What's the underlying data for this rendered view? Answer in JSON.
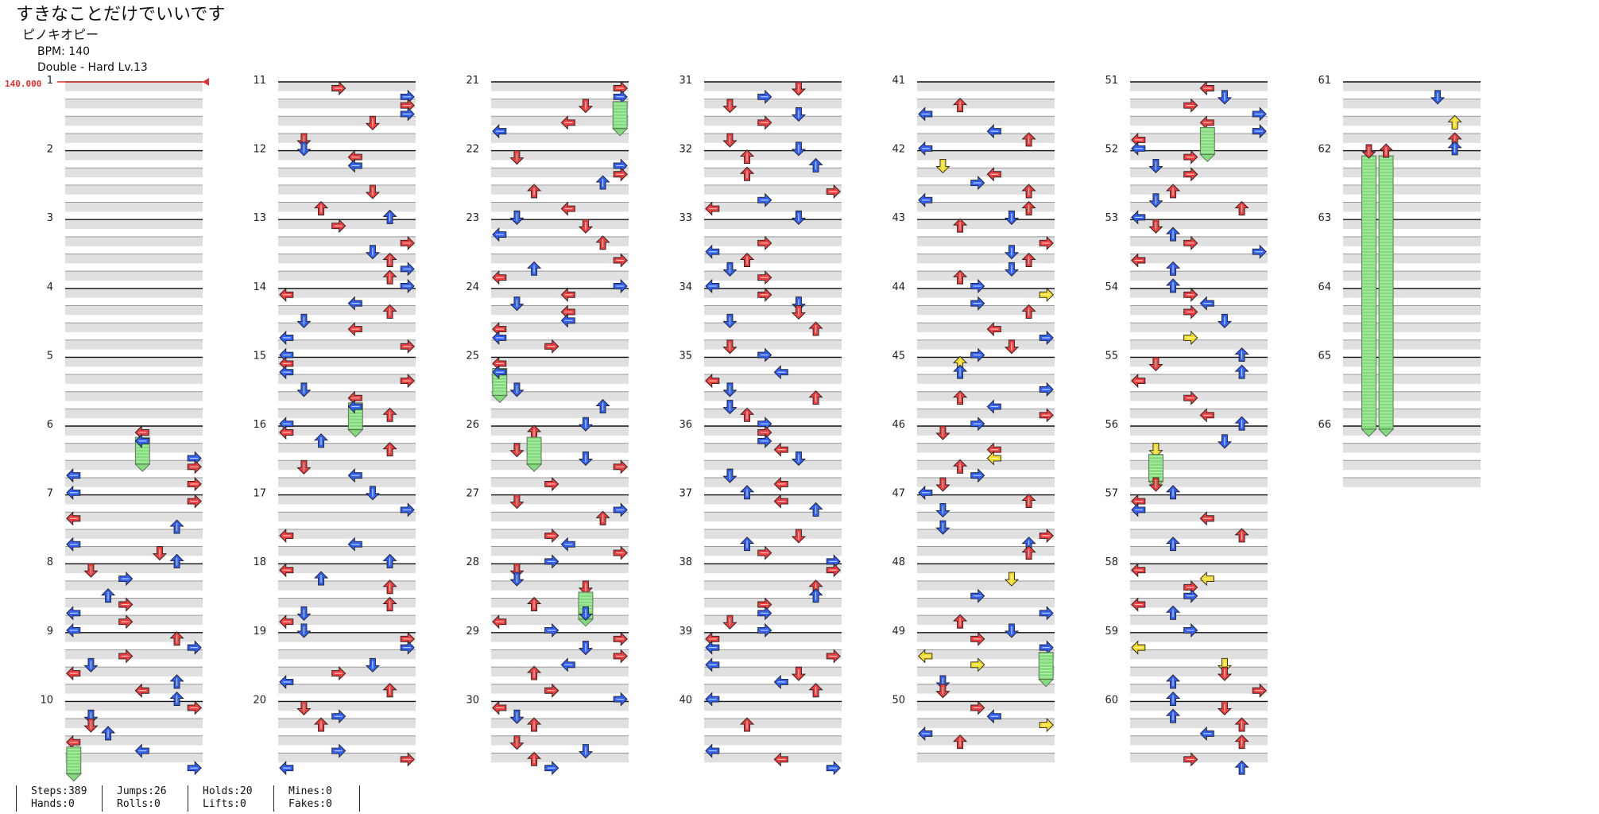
{
  "song": {
    "title": "すきなことだけでいいです",
    "artist": "ピノキオピー",
    "bpm_label": "BPM: 140",
    "difficulty_label": "Double - Hard  Lv.13"
  },
  "bpm_marker": "140.000",
  "colors": {
    "red_arrow": "#ee3b3b",
    "blue_arrow": "#2f5ff5",
    "yellow_arrow": "#f7dd26",
    "hold_body": "#7fdc78",
    "measure_band": "#e0e0e0",
    "bpm_line": "#e53030"
  },
  "measure_numbers": [
    "1",
    "2",
    "3",
    "4",
    "5",
    "6",
    "7",
    "8",
    "9",
    "10",
    "11",
    "12",
    "13",
    "14",
    "15",
    "16",
    "17",
    "18",
    "19",
    "20",
    "21",
    "22",
    "23",
    "24",
    "25",
    "26",
    "27",
    "28",
    "29",
    "30",
    "31",
    "32",
    "33",
    "34",
    "35",
    "36",
    "37",
    "38",
    "39",
    "40",
    "41",
    "42",
    "43",
    "44",
    "45",
    "46",
    "47",
    "48",
    "49",
    "50",
    "51",
    "52",
    "53",
    "54",
    "55",
    "56",
    "57",
    "58",
    "59",
    "60",
    "61",
    "62",
    "63",
    "64",
    "65",
    "66"
  ],
  "stats": [
    [
      "Steps:389",
      "Hands:0"
    ],
    [
      "Jumps:26",
      "Rolls:0"
    ],
    [
      "Holds:20",
      "Lifts:0"
    ],
    [
      "Mines:0",
      "Fakes:0"
    ]
  ]
}
